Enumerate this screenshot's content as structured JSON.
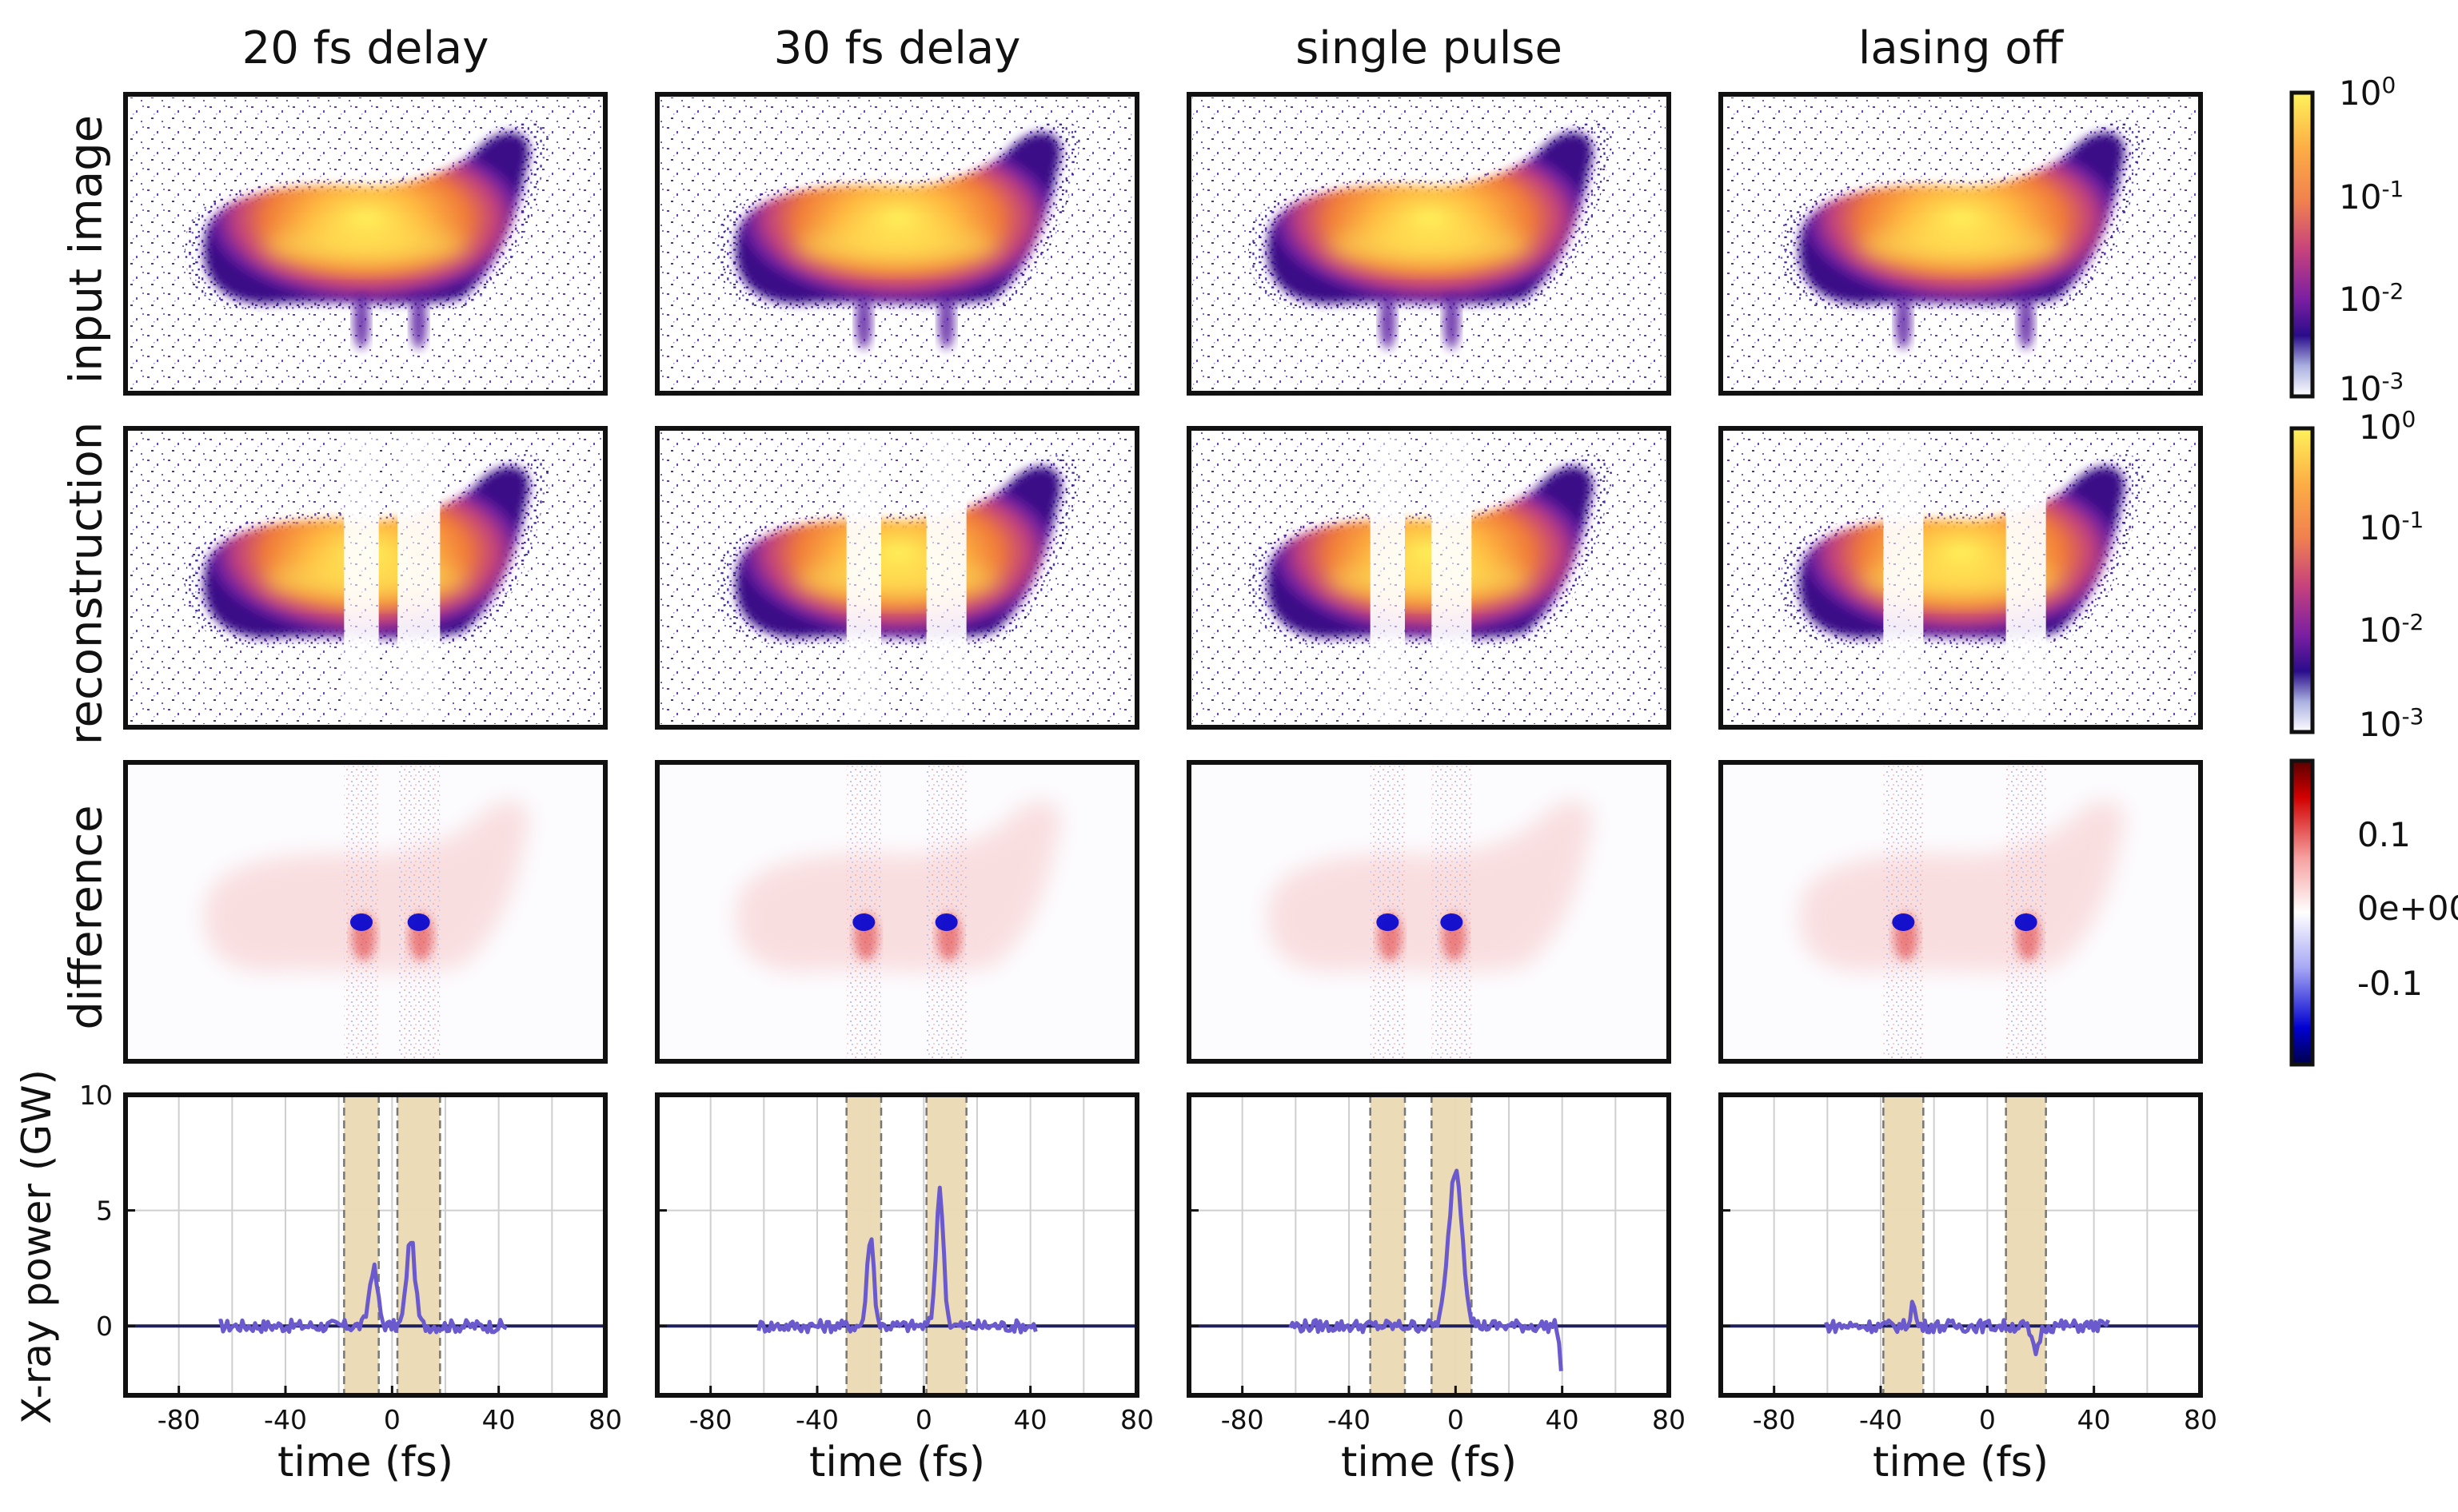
{
  "chart_data": {
    "type": "line",
    "columns": [
      {
        "title": "20 fs delay",
        "bands": [
          [
            -18,
            -5
          ],
          [
            2,
            18
          ]
        ],
        "peaks": [
          [
            -7,
            2.5,
            2.2
          ],
          [
            7,
            3.8,
            2.2
          ]
        ],
        "range": [
          -65,
          43
        ],
        "dip": null
      },
      {
        "title": "30 fs delay",
        "bands": [
          [
            -29,
            -16
          ],
          [
            1,
            16
          ]
        ],
        "peaks": [
          [
            -20,
            3.9,
            1.8
          ],
          [
            6,
            5.8,
            2.0
          ]
        ],
        "range": [
          -62,
          42
        ],
        "dip": null
      },
      {
        "title": "single pulse",
        "bands": [
          [
            -32,
            -19
          ],
          [
            -9,
            6
          ]
        ],
        "peaks": [
          [
            0,
            6.8,
            3.6
          ]
        ],
        "range": [
          -62,
          40
        ],
        "dip": [
          40,
          -2.2
        ]
      },
      {
        "title": "lasing off",
        "bands": [
          [
            -39,
            -24
          ],
          [
            7,
            22
          ]
        ],
        "peaks": [
          [
            -28,
            1.0,
            1.2
          ],
          [
            18,
            -1.1,
            2.0
          ]
        ],
        "range": [
          -61,
          46
        ],
        "dip": null
      }
    ],
    "row_labels": [
      "input image",
      "reconstruction",
      "difference"
    ],
    "xlabel": "time (fs)",
    "ylabel": "X-ray power (GW)",
    "xlim": [
      -100,
      80
    ],
    "ylim": [
      -3,
      10
    ],
    "xticks": [
      "-80",
      "-40",
      "0",
      "40",
      "80"
    ],
    "yticks": [
      "10",
      "5",
      "0"
    ],
    "colorbar_ticks": [
      [
        "10",
        "0"
      ],
      [
        "10",
        "-1"
      ],
      [
        "10",
        "-2"
      ],
      [
        "10",
        "-3"
      ]
    ],
    "diff_ticks": [
      "0.1",
      "0e+00",
      "-0.1"
    ],
    "colors": {
      "line": "#6a5acd",
      "band": "#ead9b2",
      "band_edge": "#777777",
      "zero": "#1f1f5a"
    }
  }
}
